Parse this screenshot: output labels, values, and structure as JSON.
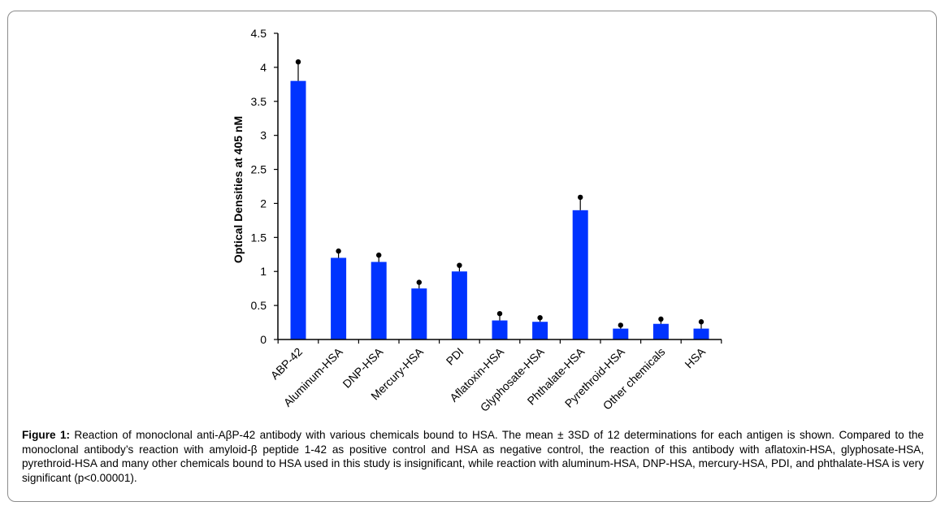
{
  "chart_data": {
    "type": "bar",
    "categories": [
      "ABP-42",
      "Aluminum-HSA",
      "DNP-HSA",
      "Mercury-HSA",
      "PDI",
      "Aflatoxin-HSA",
      "Glyphosate-HSA",
      "Phthalate-HSA",
      "Pyrethroid-HSA",
      "Other chemicals",
      "HSA"
    ],
    "values": [
      3.8,
      1.2,
      1.14,
      0.75,
      1.0,
      0.28,
      0.26,
      1.9,
      0.16,
      0.23,
      0.16
    ],
    "errors": [
      0.28,
      0.1,
      0.1,
      0.09,
      0.09,
      0.1,
      0.06,
      0.19,
      0.05,
      0.07,
      0.1
    ],
    "title": "",
    "xlabel": "",
    "ylabel": "Optical Densities at 405 nM",
    "ylim": [
      0,
      4.5
    ],
    "yticks": [
      "0",
      "0.5",
      "1",
      "1.5",
      "2",
      "2.5",
      "3",
      "3.5",
      "4",
      "4.5"
    ],
    "grid": false,
    "legend": "none",
    "bar_color": "#0033ff"
  },
  "caption": {
    "label": "Figure 1:",
    "text": " Reaction of monoclonal anti-AβP-42 antibody with various chemicals bound to HSA. The mean ± 3SD of 12 determinations for each antigen is shown. Compared to the monoclonal antibody’s reaction with amyloid-β peptide 1-42 as positive control and HSA as negative control, the reaction of this antibody with aflatoxin-HSA, glyphosate-HSA, pyrethroid-HSA and many other chemicals bound to HSA used in this study is insignificant, while reaction with aluminum-HSA, DNP-HSA, mercury-HSA, PDI, and phthalate-HSA  is very significant (p<0.00001)."
  }
}
